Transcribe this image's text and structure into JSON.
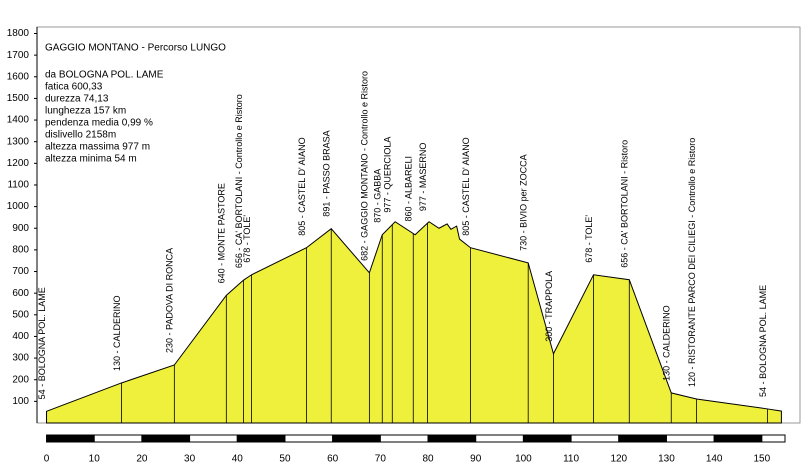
{
  "chart_data": {
    "type": "area",
    "title": "GAGGIO MONTANO - Percorso LUNGO",
    "info": [
      "da BOLOGNA POL. LAME",
      "fatica 600,33",
      "durezza 74,13",
      "lunghezza 157 km",
      "pendenza media 0,99 %",
      "dislivello  2158m",
      "altezza massima 977 m",
      "altezza minima 54 m"
    ],
    "color": "#eef03c",
    "x": [
      0,
      15.7,
      26.8,
      37.7,
      41.3,
      43,
      54.5,
      59.7,
      67.7,
      70.4,
      73.1,
      77.3,
      80.2,
      82.3,
      84,
      84.8,
      86,
      86.6,
      88.9,
      101,
      106.3,
      114.7,
      122.2,
      131,
      136.3,
      151.2,
      154.1
    ],
    "values": [
      54,
      185,
      268,
      590,
      660,
      685,
      810,
      898,
      694,
      870,
      930,
      870,
      930,
      900,
      920,
      895,
      910,
      850,
      810,
      740,
      320,
      685,
      662,
      139,
      111,
      65,
      55
    ],
    "annotations": [
      {
        "text": "54 - BOLOGNA POL. LAME",
        "x": 0
      },
      {
        "text": "130 - CALDERINO",
        "x": 15.7
      },
      {
        "text": "230 - PADOVA DI RONCA",
        "x": 26.8
      },
      {
        "text": "640 - MONTE PASTORE",
        "x": 37.7
      },
      {
        "text": "656 - CA' BORTOLANI - Controllo e Ristoro",
        "x": 41.3
      },
      {
        "text": "678 - TOLE'",
        "x": 43
      },
      {
        "text": "805 - CASTEL D' AIANO",
        "x": 54.5
      },
      {
        "text": "891 - PASSO BRASA",
        "x": 59.7
      },
      {
        "text": "682 - GAGGIO  MONTANO - Controllo  e  Ristoro",
        "x": 67.7
      },
      {
        "text": "870 - GABBA",
        "x": 70.4
      },
      {
        "text": "977 - QUERCIOLA",
        "x": 72.5
      },
      {
        "text": "860 - ALBARELI",
        "x": 76.9
      },
      {
        "text": "977 - MASERNO",
        "x": 79.9
      },
      {
        "text": "805 - CASTEL D' AIANO",
        "x": 88.9
      },
      {
        "text": "730 - BIVIO  per  ZOCCA",
        "x": 101
      },
      {
        "text": "300 - TRAPPOLA",
        "x": 106.3
      },
      {
        "text": "678 - TOLE'",
        "x": 114.7
      },
      {
        "text": "656 - CA' BORTOLANI - Ristoro",
        "x": 122.2
      },
      {
        "text": "130 - CALDERINO",
        "x": 131
      },
      {
        "text": "120 - RISTORANTE PARCO DEI CILIEGI - Controllo e Ristoro",
        "x": 136.3
      },
      {
        "text": "54 - BOLOGNA POL. LAME",
        "x": 151.2
      }
    ],
    "xlim": [
      -2,
      158
    ],
    "xticks": [
      0,
      10,
      20,
      30,
      40,
      50,
      60,
      70,
      80,
      90,
      100,
      110,
      120,
      130,
      140,
      150
    ],
    "ylim": [
      0,
      1830
    ],
    "yticks": [
      100,
      200,
      300,
      400,
      500,
      600,
      700,
      800,
      900,
      1000,
      1100,
      1200,
      1300,
      1400,
      1500,
      1600,
      1700,
      1800
    ]
  }
}
